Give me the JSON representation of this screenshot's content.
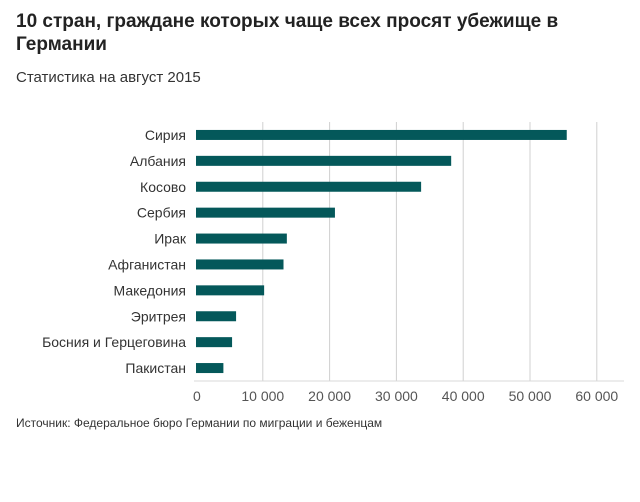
{
  "chart_data": {
    "type": "bar",
    "orientation": "horizontal",
    "title": "10 стран, граждане которых чаще всех просят убежище в Германии",
    "subtitle": "Статистика на август 2015",
    "categories": [
      "Сирия",
      "Албания",
      "Косово",
      "Сербия",
      "Ирак",
      "Афганистан",
      "Македония",
      "Эритрея",
      "Босния и Герцеговина",
      "Пакистан"
    ],
    "values": [
      55500,
      38200,
      33700,
      20800,
      13600,
      13100,
      10200,
      6000,
      5400,
      4100
    ],
    "xlim": [
      0,
      64000
    ],
    "xticks": [
      0,
      10000,
      20000,
      30000,
      40000,
      50000,
      60000
    ],
    "xtick_labels": [
      "0",
      "10 000",
      "20 000",
      "30 000",
      "40 000",
      "50 000",
      "60 000"
    ],
    "grid": true,
    "bar_color": "#04585a",
    "source": "Источник: Федеральное бюро Германии по миграции и беженцам"
  }
}
